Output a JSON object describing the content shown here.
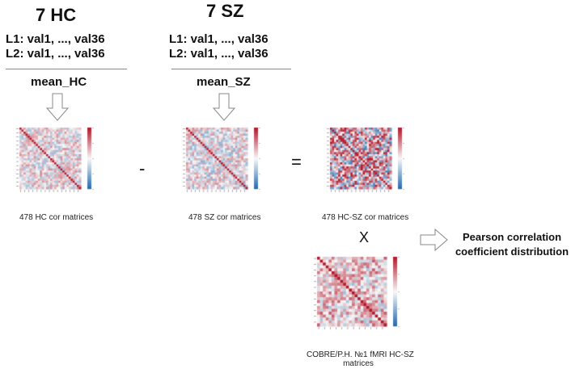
{
  "hc": {
    "title": "7 HC",
    "l1": "L1:  val1, ..., val36",
    "l2": "L2: val1, ..., val36",
    "mean": "mean_HC",
    "caption": "478 HC cor matrices"
  },
  "sz": {
    "title": "7 SZ",
    "l1": "L1:  val1, ..., val36",
    "l2": "L2: val1, ..., val36",
    "mean": "mean_SZ",
    "caption": "478 SZ cor matrices"
  },
  "diff": {
    "caption": "478  HC-SZ cor matrices"
  },
  "operators": {
    "minus": "-",
    "equals": "=",
    "times": "X"
  },
  "result": {
    "line1": "Pearson correlation",
    "line2": "coefficient distribution"
  },
  "cobre": {
    "caption1": "COBRE/P.H. №1 fMRI HC-SZ",
    "caption2": "matrices"
  },
  "colors": {
    "heatmap_high": "#b2182b",
    "heatmap_mid": "#f7f7f7",
    "heatmap_low": "#2166ac",
    "arrow_stroke": "#888888"
  }
}
